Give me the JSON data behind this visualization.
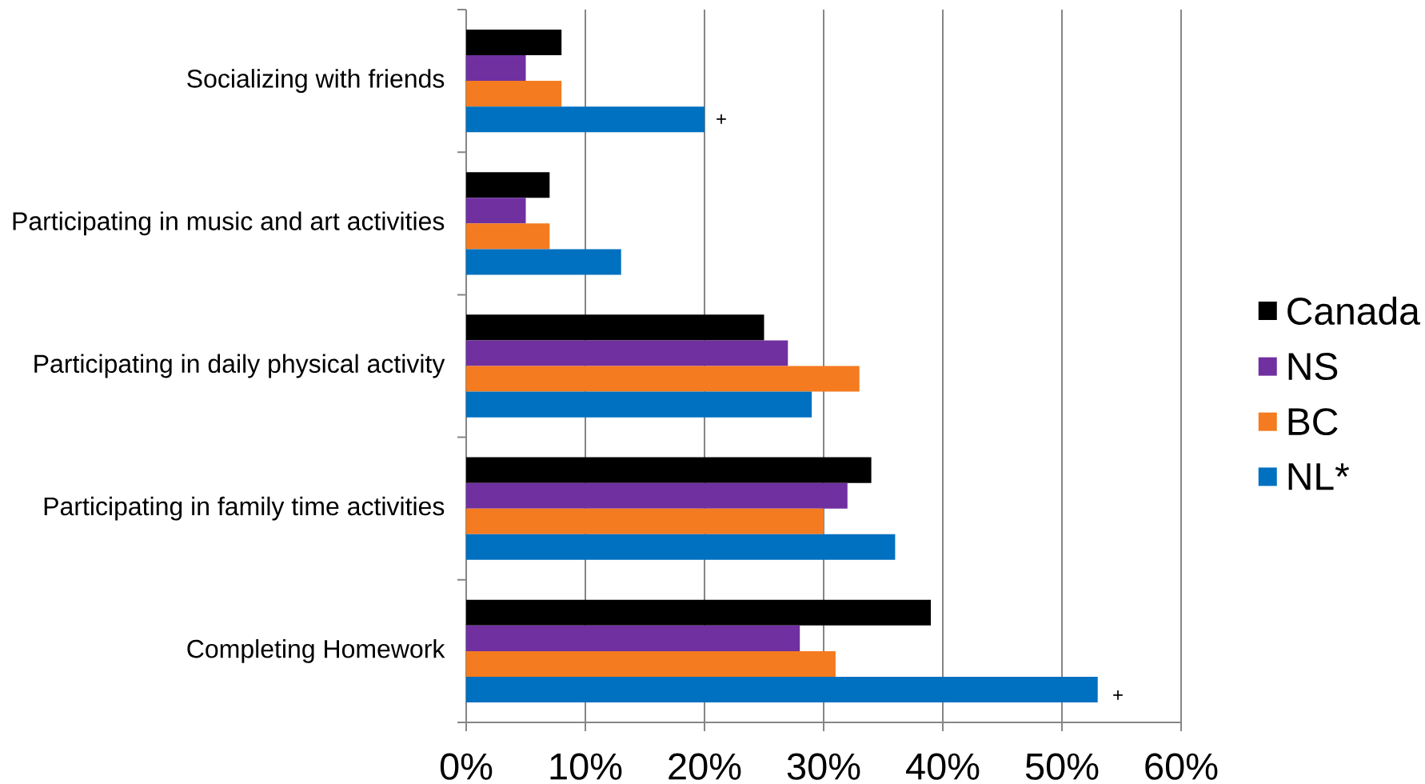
{
  "chart_data": {
    "type": "bar",
    "orientation": "horizontal",
    "categories": [
      "Socializing with friends",
      "Participating in music and art activities",
      "Participating in daily physical activity",
      "Participating in family time activities",
      "Completing Homework"
    ],
    "series": [
      {
        "name": "Canada",
        "color": "#000000",
        "values": [
          8,
          7,
          25,
          34,
          39
        ]
      },
      {
        "name": "NS",
        "color": "#7030a0",
        "values": [
          5,
          5,
          27,
          32,
          28
        ]
      },
      {
        "name": "BC",
        "color": "#f47b20",
        "values": [
          8,
          7,
          33,
          30,
          31
        ]
      },
      {
        "name": "NL*",
        "color": "#0070c0",
        "values": [
          20,
          13,
          29,
          36,
          53
        ]
      }
    ],
    "xlim": [
      0,
      60
    ],
    "xticks": [
      {
        "value": 0,
        "label": "0%"
      },
      {
        "value": 10,
        "label": "10%"
      },
      {
        "value": 20,
        "label": "20%"
      },
      {
        "value": 30,
        "label": "30%"
      },
      {
        "value": 40,
        "label": "40%"
      },
      {
        "value": 50,
        "label": "50%"
      },
      {
        "value": 60,
        "label": "60%"
      }
    ],
    "grid": "x",
    "legend": "right",
    "annotations": [
      "+",
      "+"
    ]
  }
}
